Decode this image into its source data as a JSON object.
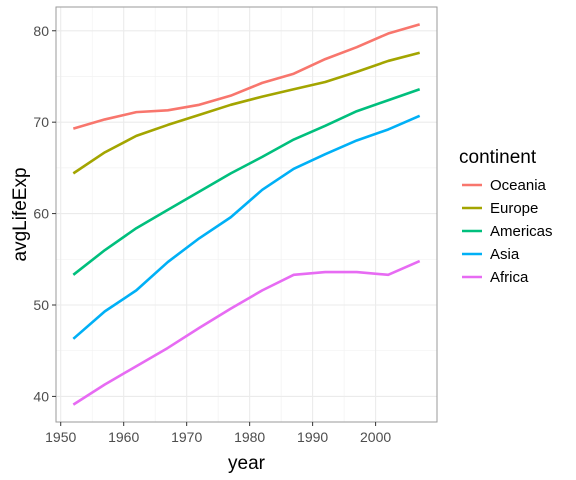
{
  "chart_data": {
    "type": "line",
    "xlabel": "year",
    "ylabel": "avgLifeExp",
    "xlim": [
      1949.25,
      2009.75
    ],
    "ylim": [
      37.2,
      82.6
    ],
    "x_ticks": [
      1950,
      1960,
      1970,
      1980,
      1990,
      2000
    ],
    "y_ticks": [
      40,
      50,
      60,
      70,
      80
    ],
    "grid": true,
    "legend_title": "continent",
    "legend_position": "right",
    "x": [
      1952,
      1957,
      1962,
      1967,
      1972,
      1977,
      1982,
      1987,
      1992,
      1997,
      2002,
      2007
    ],
    "series": [
      {
        "name": "Oceania",
        "color": "#F8766D",
        "values": [
          69.3,
          70.3,
          71.1,
          71.3,
          71.9,
          72.9,
          74.3,
          75.3,
          76.9,
          78.2,
          79.7,
          80.7
        ]
      },
      {
        "name": "Europe",
        "color": "#A3A500",
        "values": [
          64.4,
          66.7,
          68.5,
          69.7,
          70.8,
          71.9,
          72.8,
          73.6,
          74.4,
          75.5,
          76.7,
          77.6
        ]
      },
      {
        "name": "Americas",
        "color": "#00BF7D",
        "values": [
          53.3,
          56.0,
          58.4,
          60.4,
          62.4,
          64.4,
          66.2,
          68.1,
          69.6,
          71.2,
          72.4,
          73.6
        ]
      },
      {
        "name": "Asia",
        "color": "#00B0F6",
        "values": [
          46.3,
          49.3,
          51.6,
          54.7,
          57.3,
          59.6,
          62.6,
          64.9,
          66.5,
          68.0,
          69.2,
          70.7
        ]
      },
      {
        "name": "Africa",
        "color": "#E76BF3",
        "values": [
          39.1,
          41.3,
          43.3,
          45.3,
          47.5,
          49.6,
          51.6,
          53.3,
          53.6,
          53.6,
          53.3,
          54.8
        ]
      }
    ]
  }
}
